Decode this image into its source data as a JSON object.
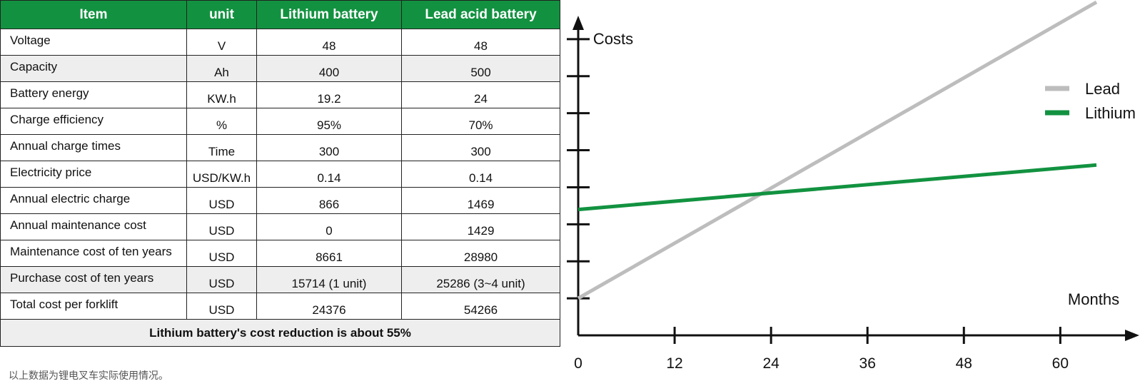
{
  "table": {
    "headers": [
      "Item",
      "unit",
      "Lithium battery",
      "Lead acid  battery"
    ],
    "rows": [
      [
        "Voltage",
        "V",
        "48",
        "48"
      ],
      [
        "Capacity",
        "Ah",
        "400",
        "500"
      ],
      [
        "Battery energy",
        "KW.h",
        "19.2",
        "24"
      ],
      [
        "Charge efficiency",
        "%",
        "95%",
        "70%"
      ],
      [
        "Annual charge times",
        "Time",
        "300",
        "300"
      ],
      [
        "Electricity price",
        "USD/KW.h",
        "0.14",
        "0.14"
      ],
      [
        "Annual electric charge",
        "USD",
        "866",
        "1469"
      ],
      [
        "Annual maintenance cost",
        "USD",
        "0",
        "1429"
      ],
      [
        "Maintenance cost of ten years",
        "USD",
        "8661",
        "28980"
      ],
      [
        "Purchase cost of ten years",
        "USD",
        "15714 (1 unit)",
        "25286 (3~4 unit)"
      ],
      [
        "Total cost per forklift",
        "USD",
        "24376",
        "54266"
      ]
    ],
    "summary": "Lithium battery's cost reduction is about 55%",
    "header_color": "#129240",
    "shade_color": "#eeeeee"
  },
  "footnote": "以上数据为锂电叉车实际使用情况。",
  "chart_data": {
    "type": "line",
    "xlabel": "Months",
    "ylabel": "Costs",
    "x_ticks": [
      0,
      12,
      24,
      36,
      48,
      60
    ],
    "xlim": [
      0,
      64.5
    ],
    "ylim": [
      0,
      9
    ],
    "y_ticks": [
      1,
      2,
      3,
      4,
      5,
      6,
      7,
      8
    ],
    "grid": false,
    "legend_position": "top-right",
    "series": [
      {
        "name": "Lead",
        "color": "#bdbdbd",
        "x": [
          0,
          64.5
        ],
        "y": [
          1,
          9
        ]
      },
      {
        "name": "Lithium",
        "color": "#129240",
        "x": [
          0,
          64.5
        ],
        "y": [
          3.4,
          4.6
        ]
      }
    ]
  }
}
